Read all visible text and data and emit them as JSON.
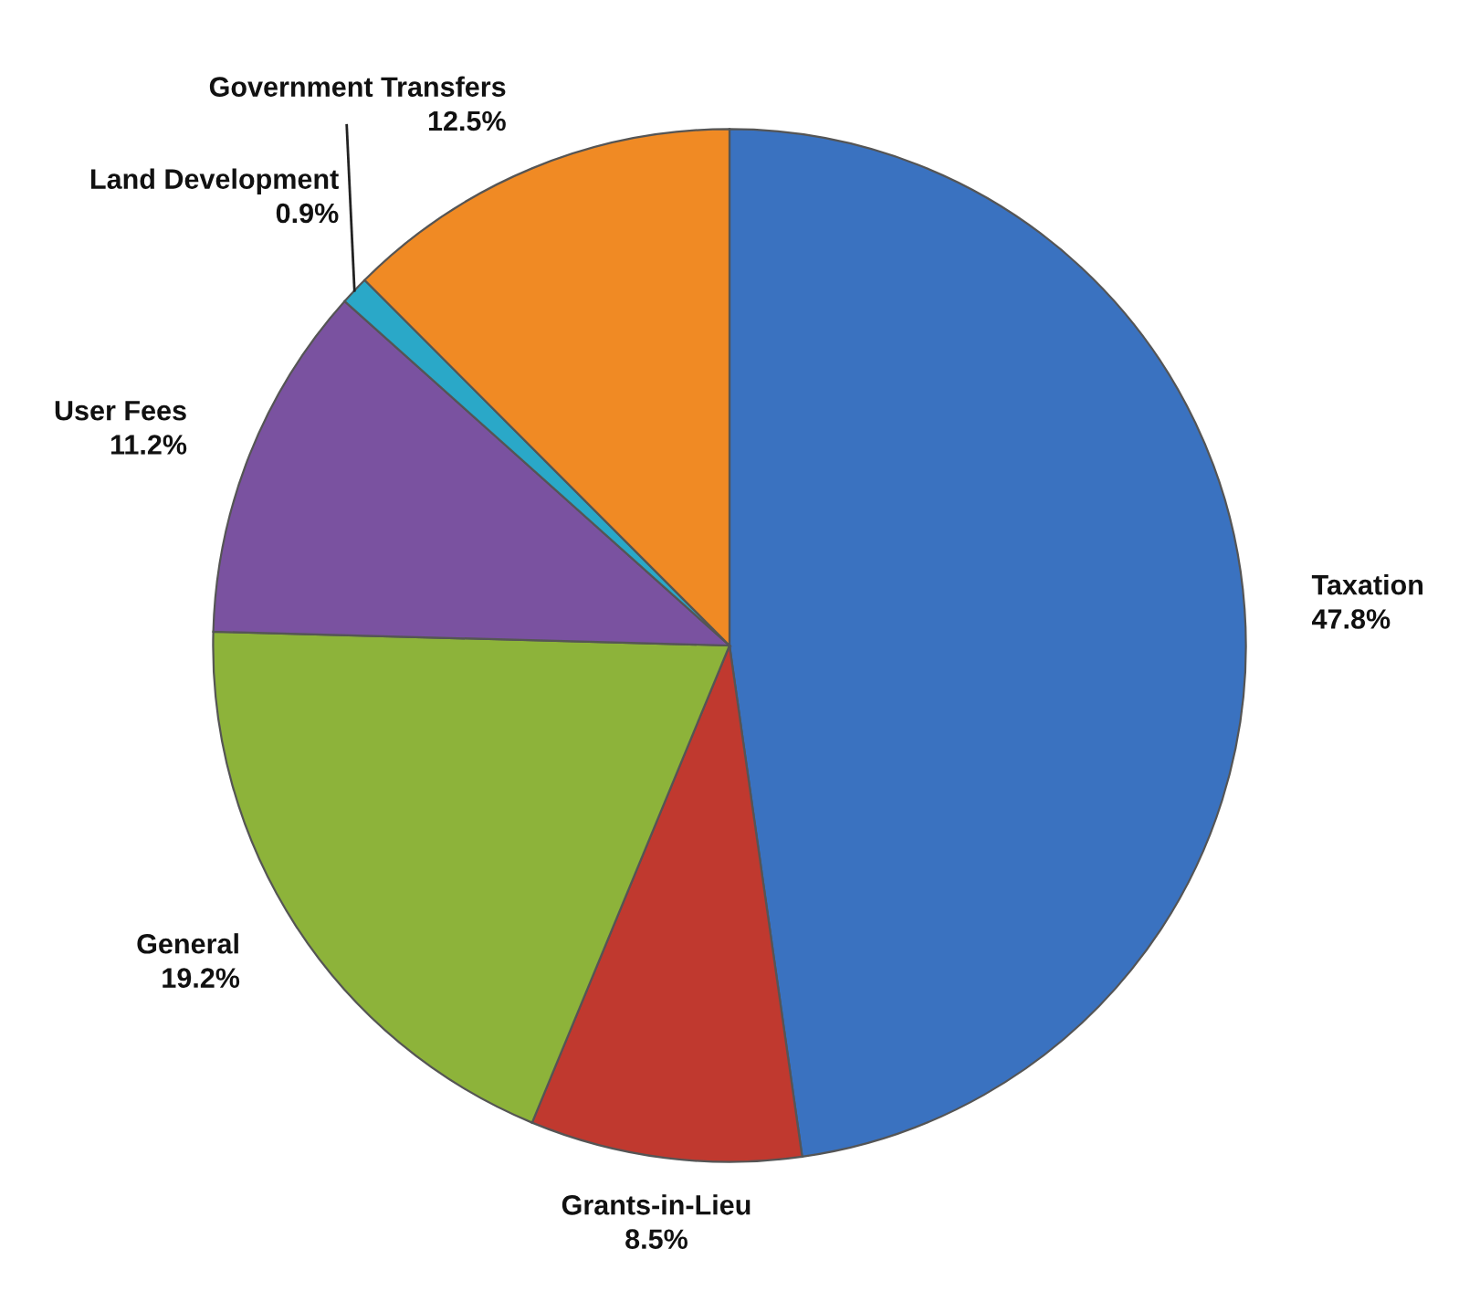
{
  "chart_data": {
    "type": "pie",
    "categories": [
      "Taxation",
      "Grants-in-Lieu",
      "General",
      "User Fees",
      "Land Development",
      "Government Transfers"
    ],
    "values": [
      47.8,
      8.5,
      19.2,
      11.2,
      0.9,
      12.5
    ],
    "value_labels": [
      "47.8%",
      "8.5%",
      "19.2%",
      "11.2%",
      "0.9%",
      "12.5%"
    ],
    "colors": [
      "#3a72c0",
      "#c0392f",
      "#8db33a",
      "#7a52a0",
      "#2aa8c8",
      "#f08a24"
    ],
    "legend": false
  }
}
